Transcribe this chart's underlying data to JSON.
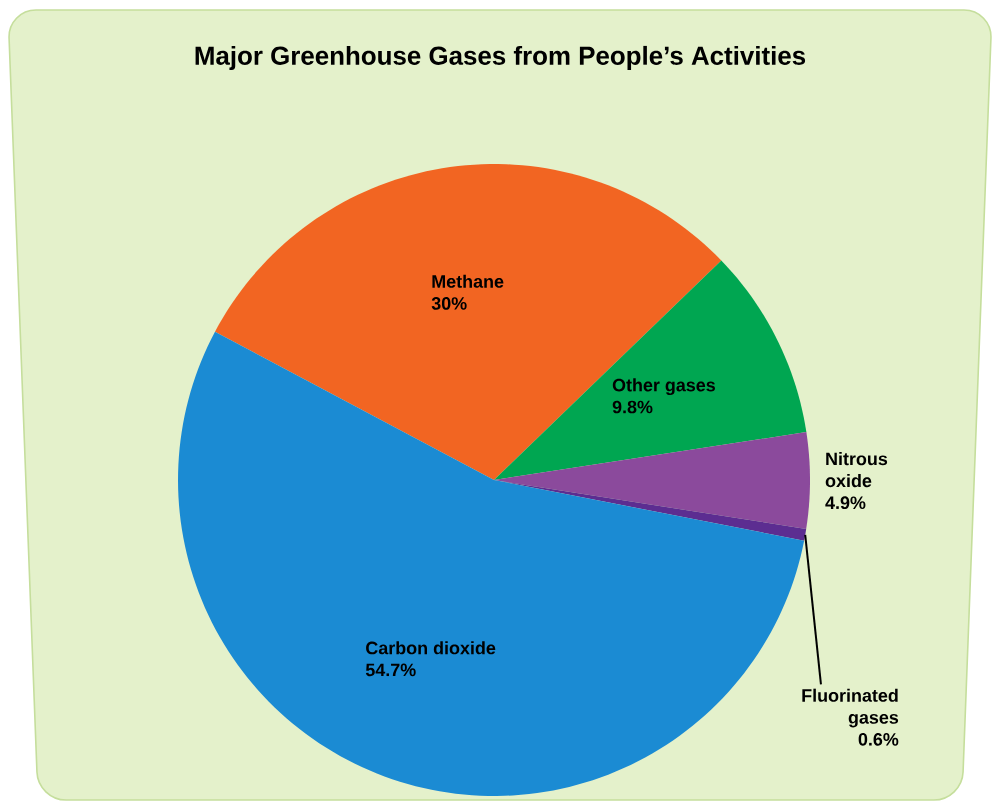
{
  "chart_data": {
    "type": "pie",
    "title": "Major Greenhouse Gases from People’s Activities",
    "categories": [
      "Methane",
      "Other gases",
      "Nitrous oxide",
      "Fluorinated gases",
      "Carbon dioxide"
    ],
    "values": [
      30,
      9.8,
      4.9,
      0.6,
      54.7
    ],
    "value_labels": [
      "30%",
      "9.8%",
      "4.9%",
      "0.6%",
      "54.7%"
    ],
    "colors": [
      "#f26522",
      "#00a651",
      "#8b4a9c",
      "#5c2d91",
      "#1b8bd3"
    ]
  }
}
